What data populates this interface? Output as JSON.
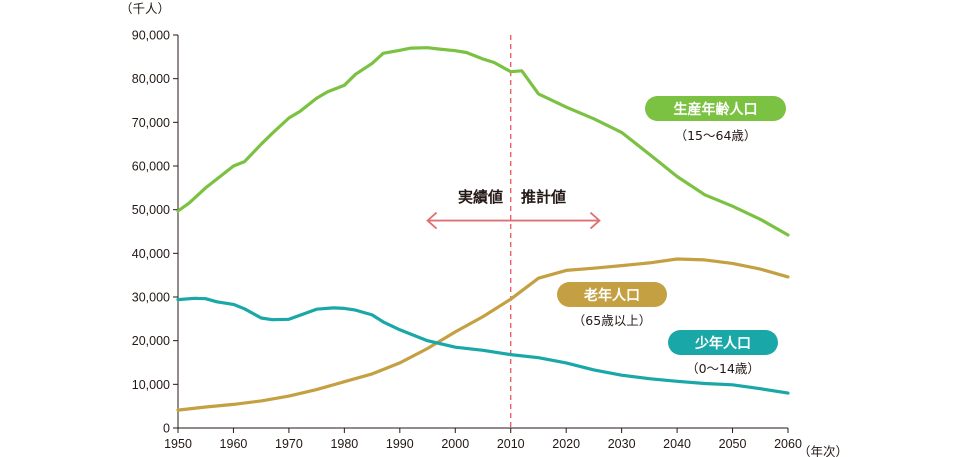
{
  "chart_data": {
    "type": "line",
    "ylabel": "（千人）",
    "xlabel": "（年次）",
    "xlim": [
      1950,
      2060
    ],
    "ylim": [
      0,
      90000
    ],
    "x_ticks": [
      1950,
      1960,
      1970,
      1980,
      1990,
      2000,
      2010,
      2020,
      2030,
      2040,
      2050,
      2060
    ],
    "y_ticks": [
      {
        "value": 0,
        "label": "0"
      },
      {
        "value": 10000,
        "label": "10,000"
      },
      {
        "value": 20000,
        "label": "20,000"
      },
      {
        "value": 30000,
        "label": "30,000"
      },
      {
        "value": 40000,
        "label": "40,000"
      },
      {
        "value": 50000,
        "label": "50,000"
      },
      {
        "value": 60000,
        "label": "60,000"
      },
      {
        "value": 70000,
        "label": "70,000"
      },
      {
        "value": 80000,
        "label": "80,000"
      },
      {
        "value": 90000,
        "label": "90,000"
      }
    ],
    "grid": false,
    "divider": {
      "x": 2010,
      "color": "#E8474C"
    },
    "annotations": {
      "actual": "実績値",
      "projected": "推計値",
      "arrow_from": 1995,
      "arrow_to": 2026,
      "arrow_y": 47500,
      "arrow_color": "#E07070"
    },
    "series": [
      {
        "name": "生産年齢人口",
        "sublabel": "（15〜64歳）",
        "color": "#7BC142",
        "x": [
          1950,
          1952,
          1955,
          1957,
          1960,
          1962,
          1965,
          1967,
          1970,
          1972,
          1975,
          1977,
          1980,
          1982,
          1985,
          1987,
          1990,
          1992,
          1995,
          1997,
          2000,
          2002,
          2005,
          2007,
          2010,
          2012,
          2015,
          2020,
          2025,
          2030,
          2035,
          2040,
          2045,
          2050,
          2055,
          2060
        ],
        "values": [
          49700,
          51500,
          55000,
          57000,
          60000,
          61000,
          65000,
          67500,
          71000,
          72500,
          75500,
          77000,
          78500,
          81000,
          83500,
          85800,
          86500,
          87000,
          87100,
          86800,
          86400,
          86000,
          84500,
          83700,
          81600,
          81800,
          76500,
          73500,
          70800,
          67700,
          62700,
          57600,
          53400,
          50800,
          47800,
          44200
        ]
      },
      {
        "name": "老年人口",
        "sublabel": "（65歳以上）",
        "color": "#C4A042",
        "x": [
          1950,
          1955,
          1960,
          1965,
          1970,
          1975,
          1980,
          1985,
          1990,
          1995,
          2000,
          2005,
          2010,
          2015,
          2020,
          2025,
          2030,
          2035,
          2040,
          2045,
          2050,
          2055,
          2060
        ],
        "values": [
          4100,
          4800,
          5400,
          6200,
          7300,
          8800,
          10600,
          12400,
          14900,
          18200,
          22000,
          25500,
          29500,
          34300,
          36100,
          36600,
          37200,
          37800,
          38700,
          38500,
          37700,
          36400,
          34600
        ]
      },
      {
        "name": "少年人口",
        "sublabel": "（0〜14歳）",
        "color": "#1AA7A7",
        "x": [
          1950,
          1953,
          1955,
          1957,
          1960,
          1962,
          1965,
          1967,
          1970,
          1972,
          1975,
          1978,
          1980,
          1982,
          1985,
          1987,
          1990,
          1995,
          2000,
          2005,
          2010,
          2015,
          2020,
          2025,
          2030,
          2035,
          2040,
          2045,
          2050,
          2055,
          2060
        ],
        "values": [
          29400,
          29700,
          29600,
          28900,
          28300,
          27300,
          25200,
          24800,
          24900,
          25800,
          27200,
          27500,
          27400,
          27000,
          25900,
          24300,
          22500,
          20000,
          18500,
          17800,
          16800,
          16100,
          14900,
          13300,
          12100,
          11300,
          10700,
          10200,
          9900,
          9000,
          8000
        ]
      }
    ]
  }
}
